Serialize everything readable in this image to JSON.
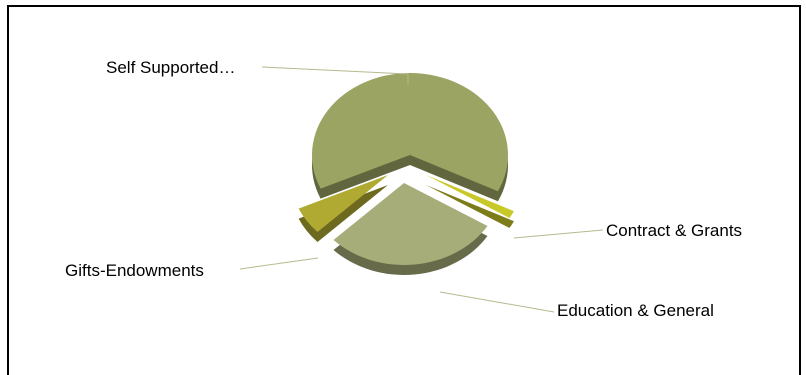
{
  "chart_data": {
    "type": "pie",
    "title": "",
    "slices": [
      {
        "label": "Self Supported…",
        "value": 64,
        "color": "#9ca464"
      },
      {
        "label": "Contract & Grants",
        "value": 1.5,
        "color": "#c8c828"
      },
      {
        "label": "Education & General",
        "value": 29,
        "color": "#a6ad78"
      },
      {
        "label": "Gifts-Endowments",
        "value": 5.5,
        "color": "#b0aa32"
      }
    ],
    "legend": "none",
    "style": "3d-exploded"
  }
}
